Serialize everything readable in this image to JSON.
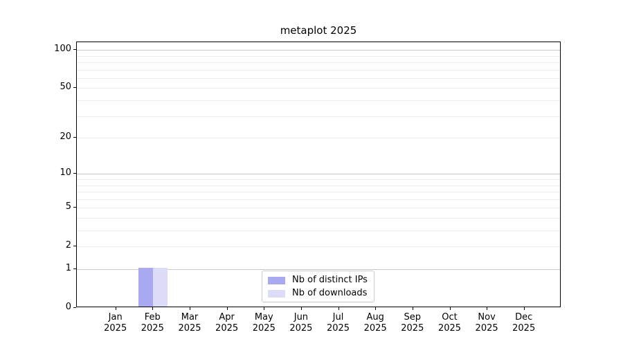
{
  "chart_data": {
    "type": "bar",
    "title": "metaplot 2025",
    "categories": [
      "Jan 2025",
      "Feb 2025",
      "Mar 2025",
      "Apr 2025",
      "May 2025",
      "Jun 2025",
      "Jul 2025",
      "Aug 2025",
      "Sep 2025",
      "Oct 2025",
      "Nov 2025",
      "Dec 2025"
    ],
    "x_tick_month": [
      "Jan",
      "Feb",
      "Mar",
      "Apr",
      "May",
      "Jun",
      "Jul",
      "Aug",
      "Sep",
      "Oct",
      "Nov",
      "Dec"
    ],
    "x_tick_year": "2025",
    "series": [
      {
        "name": "Nb of distinct IPs",
        "color": "#a9a9f1",
        "values": [
          0,
          1,
          0,
          0,
          0,
          0,
          0,
          0,
          0,
          0,
          0,
          0
        ]
      },
      {
        "name": "Nb of downloads",
        "color": "#dcdcf8",
        "values": [
          0,
          1,
          0,
          0,
          0,
          0,
          0,
          0,
          0,
          0,
          0,
          0
        ]
      }
    ],
    "y_axis": {
      "scale": "log1p",
      "ylim": [
        0,
        115
      ],
      "tick_labels": [
        0,
        1,
        2,
        5,
        10,
        20,
        50,
        100
      ],
      "major_gridlines": [
        1,
        10,
        100
      ],
      "minor_gridlines": [
        2,
        3,
        4,
        5,
        6,
        7,
        8,
        9,
        20,
        30,
        40,
        50,
        60,
        70,
        80,
        90
      ]
    },
    "legend": {
      "position": "lower center",
      "entries": [
        "Nb of distinct IPs",
        "Nb of downloads"
      ]
    },
    "grid": true,
    "colors": {
      "bar_distinct_ips": "#a9a9f1",
      "bar_downloads": "#dcdcf8",
      "major_grid": "#c8c8c8",
      "minor_grid": "#ededed",
      "spine": "#000000",
      "text": "#000000",
      "legend_border": "#cbcbcb"
    }
  }
}
